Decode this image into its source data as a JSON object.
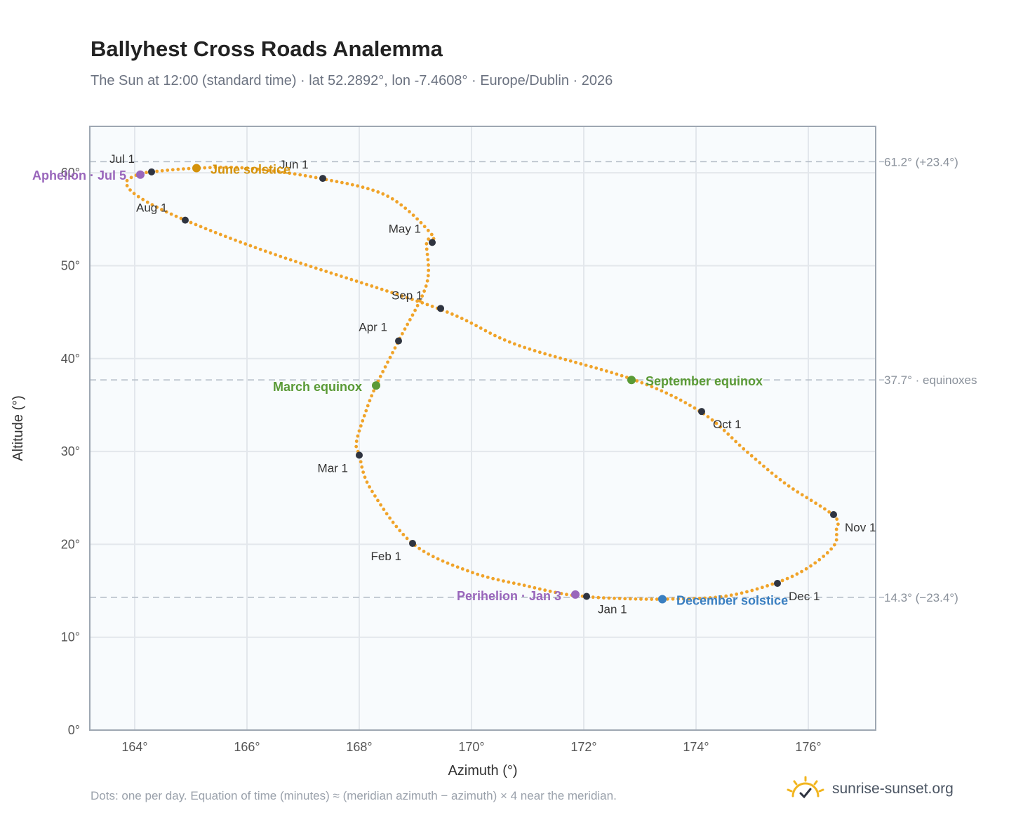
{
  "header": {
    "title": "Ballyhest Cross Roads Analemma",
    "subtitle": "The Sun at 12:00 (standard time) · lat 52.2892°, lon -7.4608° · Europe/Dublin · 2026"
  },
  "footer": {
    "note": "Dots: one per day. Equation of time (minutes) ≈ (meridian azimuth − azimuth) × 4 near the meridian.",
    "brand": "sunrise-sunset.org",
    "brand_icon": "sun-check-icon"
  },
  "colors": {
    "path": "#f0a329",
    "month_marker": "#2f3440",
    "equinox": "#5a9a36",
    "june_solstice": "#d4920b",
    "december_solstice": "#3a7fc1",
    "apsis": "#9966bb",
    "grid": "#e3e7ec",
    "plot_bg": "#f8fbfd",
    "frame": "#9ea7b2",
    "reference": "#b5bec8"
  },
  "chart_data": {
    "type": "scatter",
    "xlabel": "Azimuth (°)",
    "ylabel": "Altitude (°)",
    "xlim": [
      163.2,
      177.2
    ],
    "ylim": [
      0,
      65
    ],
    "x_ticks": [
      164,
      166,
      168,
      170,
      172,
      174,
      176
    ],
    "x_tick_labels": [
      "164°",
      "166°",
      "168°",
      "170°",
      "172°",
      "174°",
      "176°"
    ],
    "y_ticks": [
      0,
      10,
      20,
      30,
      40,
      50,
      60
    ],
    "y_tick_labels": [
      "0°",
      "10°",
      "20°",
      "30°",
      "40°",
      "50°",
      "60°"
    ],
    "grid": true,
    "path_points": [
      [
        171.6,
        14.7
      ],
      [
        172.0,
        14.4
      ],
      [
        172.5,
        14.2
      ],
      [
        173.4,
        14.1
      ],
      [
        174.5,
        14.4
      ],
      [
        175.4,
        15.8
      ],
      [
        176.0,
        17.5
      ],
      [
        176.45,
        19.8
      ],
      [
        176.5,
        21.5
      ],
      [
        176.45,
        23.1
      ],
      [
        175.6,
        26.5
      ],
      [
        174.9,
        30.0
      ],
      [
        174.1,
        34.2
      ],
      [
        172.9,
        37.7
      ],
      [
        170.8,
        41.5
      ],
      [
        169.4,
        45.4
      ],
      [
        166.5,
        51.2
      ],
      [
        164.9,
        54.9
      ],
      [
        164.1,
        57.3
      ],
      [
        163.85,
        58.9
      ],
      [
        164.05,
        59.8
      ],
      [
        164.3,
        60.1
      ],
      [
        165.1,
        60.5
      ],
      [
        166.0,
        60.5
      ],
      [
        167.3,
        59.4
      ],
      [
        168.5,
        57.5
      ],
      [
        169.3,
        53.3
      ],
      [
        169.2,
        52.5
      ],
      [
        169.2,
        48.0
      ],
      [
        168.7,
        41.9
      ],
      [
        168.3,
        37.1
      ],
      [
        168.1,
        34.0
      ],
      [
        167.95,
        31.0
      ],
      [
        168.0,
        29.6
      ],
      [
        168.2,
        26.0
      ],
      [
        168.95,
        20.1
      ],
      [
        170.0,
        17.0
      ],
      [
        171.0,
        15.5
      ],
      [
        171.6,
        14.7
      ]
    ],
    "months": [
      {
        "label": "Jan 1",
        "x": 172.05,
        "y": 14.4
      },
      {
        "label": "Feb 1",
        "x": 168.95,
        "y": 20.1
      },
      {
        "label": "Mar 1",
        "x": 168.0,
        "y": 29.6
      },
      {
        "label": "Apr 1",
        "x": 168.7,
        "y": 41.9
      },
      {
        "label": "May 1",
        "x": 169.3,
        "y": 52.5
      },
      {
        "label": "Jun 1",
        "x": 167.35,
        "y": 59.4
      },
      {
        "label": "Jul 1",
        "x": 164.3,
        "y": 60.1
      },
      {
        "label": "Aug 1",
        "x": 164.9,
        "y": 54.9
      },
      {
        "label": "Sep 1",
        "x": 169.45,
        "y": 45.4
      },
      {
        "label": "Oct 1",
        "x": 174.1,
        "y": 34.3
      },
      {
        "label": "Nov 1",
        "x": 176.45,
        "y": 23.2
      },
      {
        "label": "Dec 1",
        "x": 175.45,
        "y": 15.8
      }
    ],
    "annotations": [
      {
        "label": "Aphelion · Jul 5",
        "x": 164.1,
        "y": 59.8,
        "kind": "apsis"
      },
      {
        "label": "June solstice",
        "x": 165.1,
        "y": 60.5,
        "kind": "june_solstice"
      },
      {
        "label": "March equinox",
        "x": 168.3,
        "y": 37.1,
        "kind": "equinox"
      },
      {
        "label": "September equinox",
        "x": 172.85,
        "y": 37.7,
        "kind": "equinox"
      },
      {
        "label": "Perihelion · Jan 3",
        "x": 171.85,
        "y": 14.6,
        "kind": "apsis"
      },
      {
        "label": "December solstice",
        "x": 173.4,
        "y": 14.1,
        "kind": "december_solstice"
      }
    ],
    "reference_lines": [
      {
        "y": 61.2,
        "label": "61.2° (+23.4°)"
      },
      {
        "y": 37.7,
        "label": "37.7° · equinoxes"
      },
      {
        "y": 14.3,
        "label": "14.3° (−23.4°)"
      }
    ]
  }
}
